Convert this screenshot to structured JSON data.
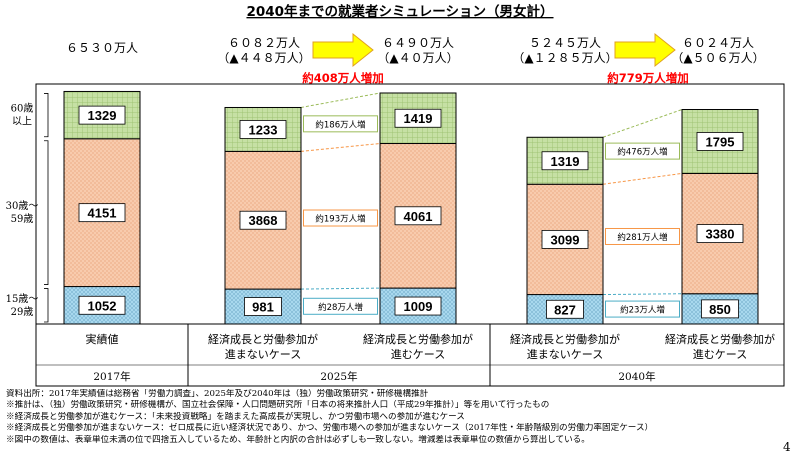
{
  "page_number": "4",
  "notes": [
    "資料出所：2017年実績値は総務省「労働力調査」、2025年及び2040年は（独）労働政策研究・研修機構推計",
    "※推計は、（独）労働政策研究・研修機構が、国立社会保障・人口問題研究所「日本の将来推計人口（平成29年推計）」等を用いて行ったもの",
    "※経済成長と労働参加が進むケース：「未来投資戦略」を踏まえた高成長が実現し、かつ労働市場への参加が進むケース",
    "※経済成長と労働参加が進まないケース：ゼロ成長に近い経済状況であり、かつ、労働市場への参加が進まないケース（2017年性・年齢階級別の労働力率固定ケース）",
    "※図中の数値は、表章単位未満の位で四捨五入しているため、年齢計と内訳の合計は必ずしも一致しない。増減差は表章単位の数値から算出している。"
  ],
  "chart_data": {
    "type": "bar",
    "stacked": true,
    "title": "2040年までの就業者シミュレーション（男女計）",
    "unit": "万人",
    "age_groups": [
      "15歳～\n29歳",
      "30歳～\n59歳",
      "60歳\n以上"
    ],
    "colors": {
      "young": "#a8d8ee",
      "middle": "#f8cbad",
      "senior": "#c6e0a4",
      "arrow": "#ffff00",
      "emphasis": "#ff0000",
      "connector_young": "#4bacc6",
      "connector_middle": "#f79646",
      "connector_senior": "#9bbb59"
    },
    "bars": [
      {
        "values": [
          1052,
          4151,
          1329
        ],
        "labels": [
          "1052",
          "4151",
          "1329"
        ],
        "category": "実績値",
        "group": "2017年"
      },
      {
        "values": [
          981,
          3868,
          1233
        ],
        "labels": [
          "981",
          "3868",
          "1233"
        ],
        "category": "経済成長と労働参加が\n進まないケース",
        "group": "2025年"
      },
      {
        "values": [
          1009,
          4061,
          1419
        ],
        "labels": [
          "1009",
          "4061",
          "1419"
        ],
        "category": "経済成長と労働参加が\n進むケース",
        "group": "2025年"
      },
      {
        "values": [
          827,
          3099,
          1319
        ],
        "labels": [
          "827",
          "3099",
          "1319"
        ],
        "category": "経済成長と労働参加が\n進まないケース",
        "group": "2040年"
      },
      {
        "values": [
          850,
          3380,
          1795
        ],
        "labels": [
          "850",
          "3380",
          "1795"
        ],
        "category": "経済成長と労働参加が\n進むケース",
        "group": "2040年"
      }
    ],
    "groups": [
      "2017年",
      "2025年",
      "2040年"
    ],
    "totals": {
      "y2017": "６５３０万人",
      "y2025_low": [
        "６０８２万人",
        "（▲４４８万人）"
      ],
      "y2025_high": [
        "６４９０万人",
        "（▲４０万人）"
      ],
      "y2040_low": [
        "５２４５万人",
        "（▲１２８５万人）"
      ],
      "y2040_high": [
        "６０２４万人",
        "（▲５０６万人）"
      ]
    },
    "increase": {
      "y2025": "約408万人増加",
      "y2040": "約779万人増加"
    },
    "differences": {
      "y2025": [
        "約28万人増",
        "約193万人増",
        "約186万人増"
      ],
      "y2040": [
        "約23万人増",
        "約281万人増",
        "約476万人増"
      ]
    }
  }
}
